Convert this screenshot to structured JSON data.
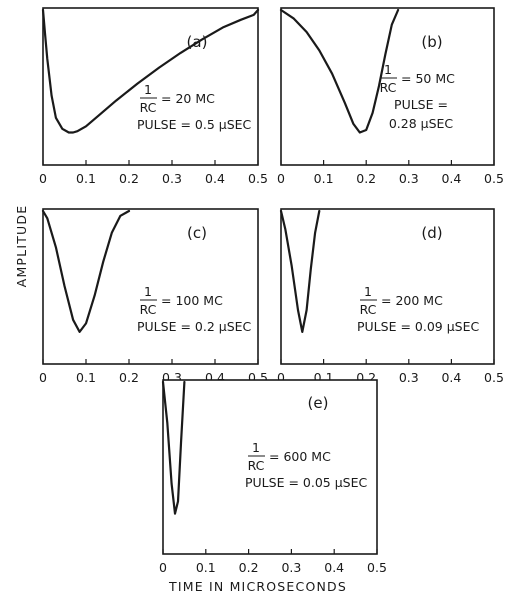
{
  "figure": {
    "ylabel": "AMPLITUDE",
    "xlabel": "TIME IN MICROSECONDS"
  },
  "chart_data": [
    {
      "type": "line",
      "panel": "(a)",
      "rc_numerator": "1",
      "rc_denominator": "RC",
      "rc_value": "= 20 MC",
      "pulse": "PULSE = 0.5 μSEC",
      "xlim": [
        0,
        0.5
      ],
      "xticks": [
        "0",
        "0.1",
        "0.2",
        "0.3",
        "0.4",
        "0.5"
      ],
      "ylim": [
        -1,
        0
      ],
      "x": [
        0,
        0.005,
        0.01,
        0.02,
        0.03,
        0.045,
        0.06,
        0.07,
        0.08,
        0.1,
        0.13,
        0.17,
        0.22,
        0.27,
        0.32,
        0.37,
        0.42,
        0.46,
        0.49,
        0.5
      ],
      "y": [
        0,
        -0.2,
        -0.4,
        -0.7,
        -0.88,
        -0.97,
        -1.0,
        -1.0,
        -0.99,
        -0.95,
        -0.86,
        -0.74,
        -0.6,
        -0.47,
        -0.35,
        -0.24,
        -0.14,
        -0.08,
        -0.04,
        0
      ]
    },
    {
      "type": "line",
      "panel": "(b)",
      "rc_numerator": "1",
      "rc_denominator": "RC",
      "rc_value": "= 50 MC",
      "pulse_line1": "PULSE =",
      "pulse_line2": "0.28 μSEC",
      "xlim": [
        0,
        0.5
      ],
      "xticks": [
        "0",
        "0.1",
        "0.2",
        "0.3",
        "0.4",
        "0.5"
      ],
      "ylim": [
        -1,
        0
      ],
      "x": [
        0,
        0.03,
        0.06,
        0.09,
        0.12,
        0.15,
        0.17,
        0.185,
        0.2,
        0.215,
        0.23,
        0.245,
        0.26,
        0.275
      ],
      "y": [
        0,
        -0.07,
        -0.18,
        -0.33,
        -0.52,
        -0.76,
        -0.93,
        -1.0,
        -0.98,
        -0.84,
        -0.62,
        -0.36,
        -0.12,
        0
      ]
    },
    {
      "type": "line",
      "panel": "(c)",
      "rc_numerator": "1",
      "rc_denominator": "RC",
      "rc_value": "= 100 MC",
      "pulse": "PULSE = 0.2 μSEC",
      "xlim": [
        0,
        0.5
      ],
      "xticks": [
        "0",
        "0.1",
        "0.2",
        "0.3",
        "0.4",
        "0.5"
      ],
      "ylim": [
        -1,
        0
      ],
      "x": [
        0,
        0.01,
        0.03,
        0.05,
        0.07,
        0.085,
        0.1,
        0.12,
        0.14,
        0.16,
        0.18,
        0.2
      ],
      "y": [
        0,
        -0.06,
        -0.3,
        -0.62,
        -0.9,
        -1.0,
        -0.93,
        -0.7,
        -0.42,
        -0.18,
        -0.04,
        0
      ]
    },
    {
      "type": "line",
      "panel": "(d)",
      "rc_numerator": "1",
      "rc_denominator": "RC",
      "rc_value": "= 200 MC",
      "pulse": "PULSE = 0.09 μSEC",
      "xlim": [
        0,
        0.5
      ],
      "xticks": [
        "0",
        "0.1",
        "0.2",
        "0.3",
        "0.4",
        "0.5"
      ],
      "ylim": [
        -1,
        0
      ],
      "x": [
        0,
        0.01,
        0.025,
        0.04,
        0.05,
        0.06,
        0.07,
        0.08,
        0.09
      ],
      "y": [
        0,
        -0.15,
        -0.45,
        -0.82,
        -1.0,
        -0.82,
        -0.48,
        -0.18,
        0
      ]
    },
    {
      "type": "line",
      "panel": "(e)",
      "rc_numerator": "1",
      "rc_denominator": "RC",
      "rc_value": "= 600 MC",
      "pulse": "PULSE = 0.05 μSEC",
      "xlim": [
        0,
        0.5
      ],
      "xticks": [
        "0",
        "0.1",
        "0.2",
        "0.3",
        "0.4",
        "0.5"
      ],
      "ylim": [
        -1,
        0
      ],
      "x": [
        0,
        0.01,
        0.02,
        0.028,
        0.035,
        0.042,
        0.05
      ],
      "y": [
        0,
        -0.3,
        -0.75,
        -0.97,
        -0.88,
        -0.45,
        0
      ]
    }
  ]
}
